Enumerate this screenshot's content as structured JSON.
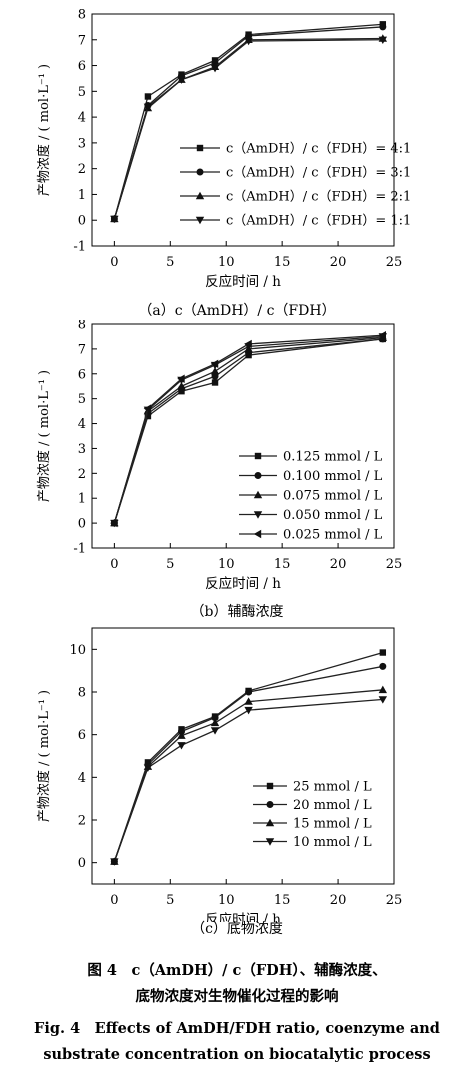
{
  "panels": [
    {
      "caption": "（a）c（AmDH）/ c（FDH）",
      "chart_data": {
        "type": "line",
        "x": [
          0,
          3,
          6,
          9,
          12,
          24
        ],
        "xlim": [
          -2,
          25
        ],
        "ylim": [
          -1,
          8
        ],
        "xticks": [
          0,
          5,
          10,
          15,
          20,
          25
        ],
        "yticks": [
          -1,
          0,
          1,
          2,
          3,
          4,
          5,
          6,
          7,
          8
        ],
        "xlabel": "反应时间 / h",
        "ylabel": "产物浓度 / ( mol·L⁻¹ )",
        "legend_position": "lower-right",
        "grid": false,
        "series": [
          {
            "name": "c（AmDH）/ c（FDH）= 4:1",
            "marker": "square",
            "values": [
              0.05,
              4.8,
              5.65,
              6.2,
              7.2,
              7.6
            ]
          },
          {
            "name": "c（AmDH）/ c（FDH）= 3:1",
            "marker": "circle",
            "values": [
              0.05,
              4.45,
              5.6,
              6.1,
              7.15,
              7.5
            ]
          },
          {
            "name": "c（AmDH）/ c（FDH）= 2:1",
            "marker": "triangle-up",
            "values": [
              0.05,
              4.35,
              5.45,
              5.95,
              7.0,
              7.05
            ]
          },
          {
            "name": "c（AmDH）/ c（FDH）= 1:1",
            "marker": "triangle-down",
            "values": [
              0.05,
              4.4,
              5.45,
              5.9,
              6.95,
              7.0
            ]
          }
        ]
      }
    },
    {
      "caption": "（b）辅酶浓度",
      "chart_data": {
        "type": "line",
        "x": [
          0,
          3,
          6,
          9,
          12,
          24
        ],
        "xlim": [
          -2,
          25
        ],
        "ylim": [
          -1,
          8
        ],
        "xticks": [
          0,
          5,
          10,
          15,
          20,
          25
        ],
        "yticks": [
          -1,
          0,
          1,
          2,
          3,
          4,
          5,
          6,
          7,
          8
        ],
        "xlabel": "反应时间 / h",
        "ylabel": "产物浓度 / ( mol·L⁻¹ )",
        "legend_position": "lower-right",
        "grid": false,
        "series": [
          {
            "name": "0.125 mmol / L",
            "marker": "square",
            "values": [
              0.0,
              4.3,
              5.3,
              5.65,
              6.75,
              7.4
            ]
          },
          {
            "name": "0.100 mmol / L",
            "marker": "circle",
            "values": [
              0.0,
              4.4,
              5.4,
              5.9,
              6.85,
              7.4
            ]
          },
          {
            "name": "0.075 mmol / L",
            "marker": "triangle-up",
            "values": [
              0.0,
              4.5,
              5.5,
              6.1,
              7.0,
              7.45
            ]
          },
          {
            "name": "0.050 mmol / L",
            "marker": "triangle-down",
            "values": [
              0.0,
              4.55,
              5.75,
              6.35,
              7.1,
              7.5
            ]
          },
          {
            "name": "0.025 mmol / L",
            "marker": "triangle-left",
            "values": [
              0.0,
              4.6,
              5.8,
              6.4,
              7.2,
              7.55
            ]
          }
        ]
      }
    },
    {
      "caption": "（c）底物浓度",
      "chart_data": {
        "type": "line",
        "x": [
          0,
          3,
          6,
          9,
          12,
          24
        ],
        "xlim": [
          -2,
          25
        ],
        "ylim": [
          -1,
          11
        ],
        "xticks": [
          0,
          5,
          10,
          15,
          20,
          25
        ],
        "yticks": [
          0,
          2,
          4,
          6,
          8,
          10
        ],
        "xlabel": "反应时间 / h",
        "ylabel": "产物浓度 / ( mol·L⁻¹ )",
        "legend_position": "lower-right",
        "grid": false,
        "series": [
          {
            "name": "25 mmol / L",
            "marker": "square",
            "values": [
              0.05,
              4.7,
              6.25,
              6.85,
              8.05,
              9.85
            ]
          },
          {
            "name": "20 mmol / L",
            "marker": "circle",
            "values": [
              0.05,
              4.6,
              6.15,
              6.8,
              8.0,
              9.2
            ]
          },
          {
            "name": "15 mmol / L",
            "marker": "triangle-up",
            "values": [
              0.05,
              4.5,
              5.95,
              6.55,
              7.55,
              8.1
            ]
          },
          {
            "name": "10 mmol / L",
            "marker": "triangle-down",
            "values": [
              0.05,
              4.45,
              5.5,
              6.2,
              7.15,
              7.65
            ]
          }
        ]
      }
    }
  ],
  "figure": {
    "caption_cn_line1": "图 4　c（AmDH）/ c（FDH）、辅酶浓度、",
    "caption_cn_line2": "底物浓度对生物催化过程的影响",
    "caption_en_line1": "Fig. 4　Effects of AmDH/FDH ratio, coenzyme and",
    "caption_en_line2": "substrate concentration on biocatalytic process"
  }
}
